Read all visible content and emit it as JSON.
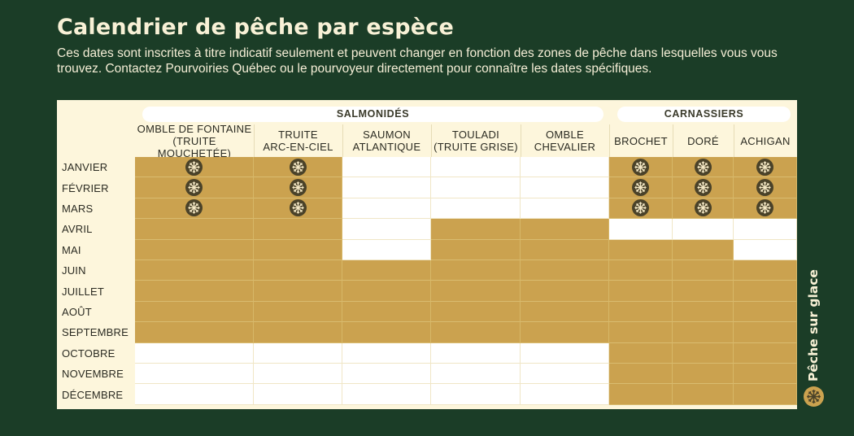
{
  "title": "Calendrier de pêche par espèce",
  "intro": "Ces dates sont inscrites à titre indicatif seulement et peuvent changer en fonction des zones de pêche dans lesquelles vous vous trouvez. Contactez Pourvoiries Québec ou le pourvoyeur directement pour connaître les dates spécifiques.",
  "groups": [
    {
      "label": "SALMONIDÉS"
    },
    {
      "label": "CARNASSIERS"
    }
  ],
  "species": [
    {
      "line1": "OMBLE DE FONTAINE",
      "line2": "(TRUITE MOUCHETÉE)"
    },
    {
      "line1": "TRUITE",
      "line2": "ARC-EN-CIEL"
    },
    {
      "line1": "SAUMON",
      "line2": "ATLANTIQUE"
    },
    {
      "line1": "TOULADI",
      "line2": "(TRUITE GRISE)"
    },
    {
      "line1": "OMBLE",
      "line2": "CHEVALIER"
    },
    {
      "line1": "BROCHET",
      "line2": ""
    },
    {
      "line1": "DORÉ",
      "line2": ""
    },
    {
      "line1": "ACHIGAN",
      "line2": ""
    }
  ],
  "months": [
    "JANVIER",
    "FÉVRIER",
    "MARS",
    "AVRIL",
    "MAI",
    "JUIN",
    "JUILLET",
    "AOÛT",
    "SEPTEMBRE",
    "OCTOBRE",
    "NOVEMBRE",
    "DÉCEMBRE"
  ],
  "status_legend": {
    "O": "open",
    "I": "open-ice-fishing",
    ".": "closed"
  },
  "grid": [
    [
      "I",
      "I",
      ".",
      ".",
      ".",
      "I",
      "I",
      "I"
    ],
    [
      "I",
      "I",
      ".",
      ".",
      ".",
      "I",
      "I",
      "I"
    ],
    [
      "I",
      "I",
      ".",
      ".",
      ".",
      "I",
      "I",
      "I"
    ],
    [
      "O",
      "O",
      ".",
      "O",
      "O",
      ".",
      ".",
      "."
    ],
    [
      "O",
      "O",
      ".",
      "O",
      "O",
      "O",
      "O",
      "."
    ],
    [
      "O",
      "O",
      "O",
      "O",
      "O",
      "O",
      "O",
      "O"
    ],
    [
      "O",
      "O",
      "O",
      "O",
      "O",
      "O",
      "O",
      "O"
    ],
    [
      "O",
      "O",
      "O",
      "O",
      "O",
      "O",
      "O",
      "O"
    ],
    [
      "O",
      "O",
      "O",
      "O",
      "O",
      "O",
      "O",
      "O"
    ],
    [
      ".",
      ".",
      ".",
      ".",
      ".",
      "O",
      "O",
      "O"
    ],
    [
      ".",
      ".",
      ".",
      ".",
      ".",
      "O",
      "O",
      "O"
    ],
    [
      ".",
      ".",
      ".",
      ".",
      ".",
      "O",
      "O",
      "O"
    ]
  ],
  "legend": {
    "label": "Pêche sur glace",
    "icon": "snowflake-icon"
  },
  "colors": {
    "background": "#1b3d27",
    "open": "#cba24f",
    "closed": "#ffffff",
    "table": "#fdf6dc",
    "icon_circle": "#4a4229"
  }
}
